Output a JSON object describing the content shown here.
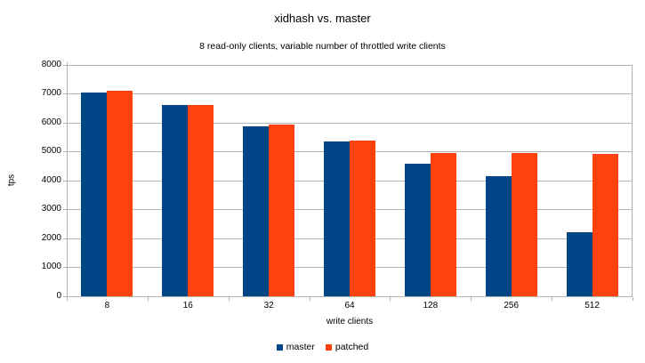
{
  "chart_data": {
    "type": "bar",
    "title": "xidhash vs. master",
    "subtitle": "8 read-only clients, variable number of throttled write clients",
    "xlabel": "write clients",
    "ylabel": "tps",
    "categories": [
      "8",
      "16",
      "32",
      "64",
      "128",
      "256",
      "512"
    ],
    "series": [
      {
        "name": "master",
        "color": "#004586",
        "values": [
          7050,
          6600,
          5890,
          5340,
          4580,
          4140,
          2230
        ]
      },
      {
        "name": "patched",
        "color": "#ff420e",
        "values": [
          7100,
          6630,
          5950,
          5380,
          4950,
          4960,
          4930
        ]
      }
    ],
    "ylim": [
      0,
      8000
    ],
    "ytick_step": 1000,
    "grid": true,
    "legend_position": "bottom",
    "colors": {
      "gridline": "#b3b3b3",
      "axis": "#b3b3b3",
      "text": "#000000",
      "background": "#ffffff"
    }
  }
}
